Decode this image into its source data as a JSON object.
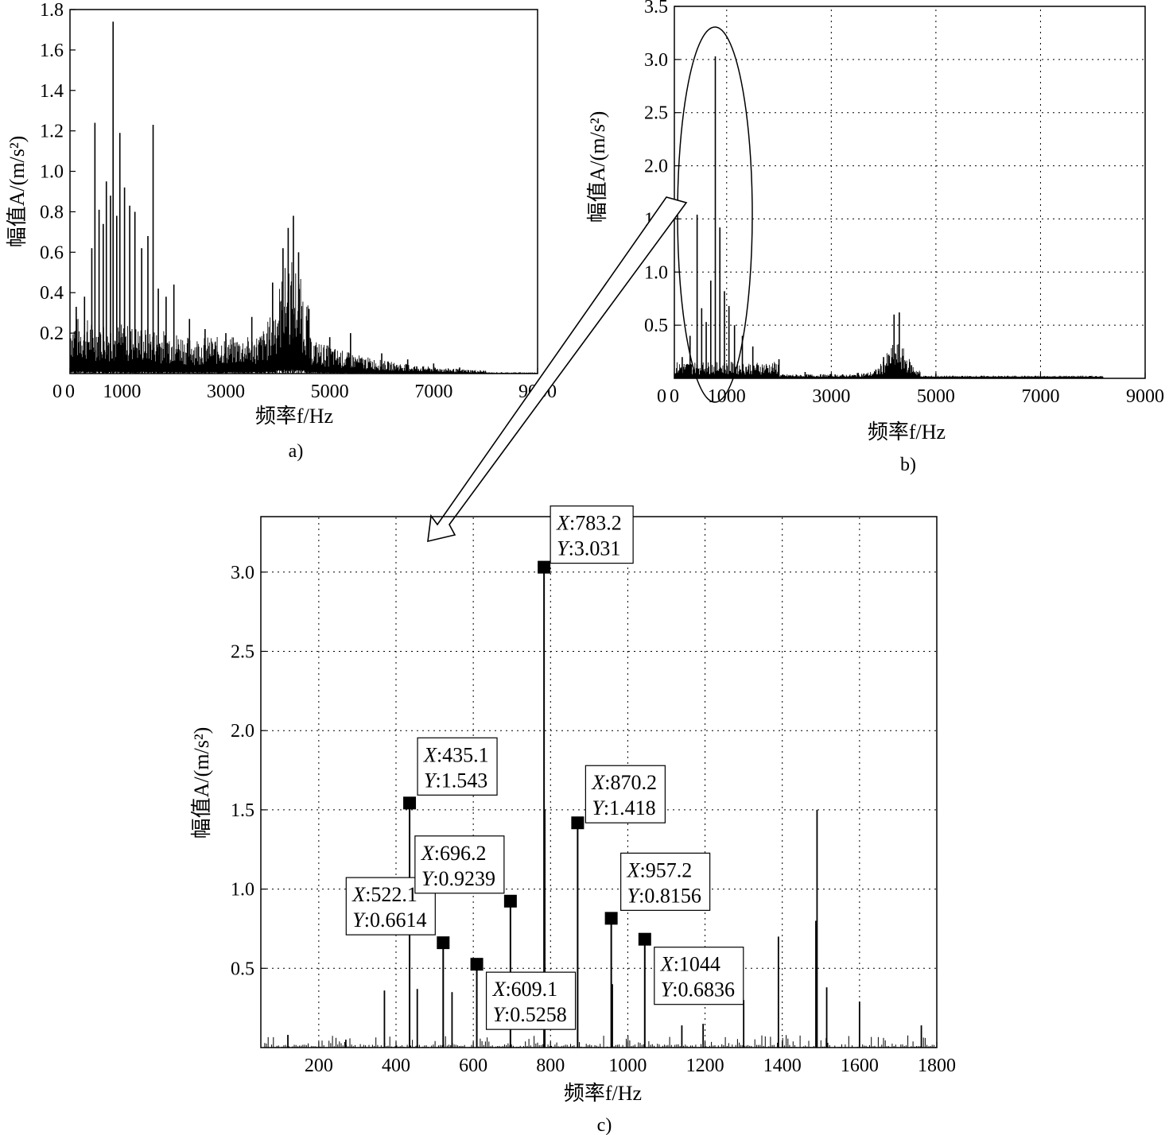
{
  "figure_captions": {
    "a": "a)",
    "b": "b)",
    "c": "c)"
  },
  "chart_data": [
    {
      "id": "a",
      "type": "line",
      "title": "",
      "xlabel": "频率f/Hz",
      "ylabel": "幅值A/(m/s²)",
      "xlim": [
        0,
        9000
      ],
      "ylim": [
        0,
        1.8
      ],
      "xticks": [
        0,
        1000,
        3000,
        5000,
        7000,
        9000
      ],
      "yticks": [
        0.2,
        0.4,
        0.6,
        0.8,
        1.0,
        1.2,
        1.4,
        1.6,
        1.8
      ],
      "ytick_labels": [
        "0.2",
        "0.4",
        "0.6",
        "0.8",
        "1.0",
        "1.2",
        "1.4",
        "1.6",
        "1.8"
      ],
      "grid": false,
      "peaks": [
        {
          "x": 120,
          "y": 0.33
        },
        {
          "x": 280,
          "y": 0.38
        },
        {
          "x": 420,
          "y": 0.62
        },
        {
          "x": 480,
          "y": 1.24
        },
        {
          "x": 560,
          "y": 0.81
        },
        {
          "x": 640,
          "y": 0.74
        },
        {
          "x": 700,
          "y": 0.95
        },
        {
          "x": 780,
          "y": 0.88
        },
        {
          "x": 830,
          "y": 1.74
        },
        {
          "x": 900,
          "y": 0.78
        },
        {
          "x": 960,
          "y": 1.19
        },
        {
          "x": 1050,
          "y": 0.92
        },
        {
          "x": 1150,
          "y": 0.83
        },
        {
          "x": 1250,
          "y": 0.8
        },
        {
          "x": 1380,
          "y": 0.62
        },
        {
          "x": 1500,
          "y": 0.68
        },
        {
          "x": 1600,
          "y": 1.23
        },
        {
          "x": 1700,
          "y": 0.42
        },
        {
          "x": 1850,
          "y": 0.38
        },
        {
          "x": 2000,
          "y": 0.44
        },
        {
          "x": 2300,
          "y": 0.27
        },
        {
          "x": 2600,
          "y": 0.22
        },
        {
          "x": 3000,
          "y": 0.2
        },
        {
          "x": 3500,
          "y": 0.28
        },
        {
          "x": 3900,
          "y": 0.45
        },
        {
          "x": 4100,
          "y": 0.62
        },
        {
          "x": 4200,
          "y": 0.72
        },
        {
          "x": 4300,
          "y": 0.78
        },
        {
          "x": 4400,
          "y": 0.6
        },
        {
          "x": 4600,
          "y": 0.32
        },
        {
          "x": 5000,
          "y": 0.18
        },
        {
          "x": 5400,
          "y": 0.2
        },
        {
          "x": 6000,
          "y": 0.1
        },
        {
          "x": 6500,
          "y": 0.07
        },
        {
          "x": 7000,
          "y": 0.05
        },
        {
          "x": 7500,
          "y": 0.03
        },
        {
          "x": 8000,
          "y": 0.01
        }
      ]
    },
    {
      "id": "b",
      "type": "line",
      "title": "",
      "xlabel": "频率f/Hz",
      "ylabel": "幅值A/(m/s²)",
      "xlim": [
        0,
        9000
      ],
      "ylim": [
        0,
        3.5
      ],
      "xticks": [
        0,
        1000,
        3000,
        5000,
        7000,
        9000
      ],
      "yticks": [
        0.5,
        1.0,
        1.5,
        2.0,
        2.5,
        3.0,
        3.5
      ],
      "ytick_labels": [
        "0.5",
        "1.0",
        "1.5",
        "2.0",
        "2.5",
        "3.0",
        "3.5"
      ],
      "grid": true,
      "annotation": "ellipse highlighting 0–1500 Hz region",
      "peaks": [
        {
          "x": 150,
          "y": 0.2
        },
        {
          "x": 300,
          "y": 0.4
        },
        {
          "x": 435,
          "y": 1.54
        },
        {
          "x": 522,
          "y": 0.66
        },
        {
          "x": 609,
          "y": 0.53
        },
        {
          "x": 696,
          "y": 0.92
        },
        {
          "x": 783,
          "y": 3.03
        },
        {
          "x": 870,
          "y": 1.42
        },
        {
          "x": 957,
          "y": 0.82
        },
        {
          "x": 1044,
          "y": 0.68
        },
        {
          "x": 1150,
          "y": 0.5
        },
        {
          "x": 1300,
          "y": 0.4
        },
        {
          "x": 1500,
          "y": 0.3
        },
        {
          "x": 2000,
          "y": 0.18
        },
        {
          "x": 2500,
          "y": 0.06
        },
        {
          "x": 3000,
          "y": 0.04
        },
        {
          "x": 3500,
          "y": 0.05
        },
        {
          "x": 4000,
          "y": 0.2
        },
        {
          "x": 4200,
          "y": 0.6
        },
        {
          "x": 4300,
          "y": 0.62
        },
        {
          "x": 4500,
          "y": 0.15
        },
        {
          "x": 5000,
          "y": 0.04
        },
        {
          "x": 6000,
          "y": 0.02
        },
        {
          "x": 7000,
          "y": 0.01
        },
        {
          "x": 8000,
          "y": 0.01
        }
      ]
    },
    {
      "id": "c",
      "type": "line",
      "title": "",
      "xlabel": "频率f/Hz",
      "ylabel": "幅值A/(m/s²)",
      "xlim": [
        50,
        1800
      ],
      "ylim": [
        0,
        3.35
      ],
      "xticks": [
        200,
        400,
        600,
        800,
        1000,
        1200,
        1400,
        1600,
        1800
      ],
      "yticks": [
        0.5,
        1.0,
        1.5,
        2.0,
        2.5,
        3.0
      ],
      "ytick_labels": [
        "0.5",
        "1.0",
        "1.5",
        "2.0",
        "2.5",
        "3.0"
      ],
      "grid": true,
      "datatips": [
        {
          "x": 435.1,
          "y": 1.543,
          "label_x": "435.1",
          "label_y": "1.543"
        },
        {
          "x": 522.1,
          "y": 0.6614,
          "label_x": "522.1",
          "label_y": "0.6614"
        },
        {
          "x": 609.1,
          "y": 0.5258,
          "label_x": "609.1",
          "label_y": "0.5258"
        },
        {
          "x": 696.2,
          "y": 0.9239,
          "label_x": "696.2",
          "label_y": "0.9239"
        },
        {
          "x": 783.2,
          "y": 3.031,
          "label_x": "783.2",
          "label_y": "3.031"
        },
        {
          "x": 870.2,
          "y": 1.418,
          "label_x": "870.2",
          "label_y": "1.418"
        },
        {
          "x": 957.2,
          "y": 0.8156,
          "label_x": "957.2",
          "label_y": "0.8156"
        },
        {
          "x": 1044,
          "y": 0.6836,
          "label_x": "1044",
          "label_y": "0.6836"
        }
      ],
      "other_peaks": [
        {
          "x": 120,
          "y": 0.08
        },
        {
          "x": 270,
          "y": 0.05
        },
        {
          "x": 370,
          "y": 0.36
        },
        {
          "x": 455,
          "y": 0.37
        },
        {
          "x": 545,
          "y": 0.35
        },
        {
          "x": 1140,
          "y": 0.14
        },
        {
          "x": 1195,
          "y": 0.15
        },
        {
          "x": 1300,
          "y": 0.3
        },
        {
          "x": 1390,
          "y": 0.7
        },
        {
          "x": 1490,
          "y": 1.5
        },
        {
          "x": 1487,
          "y": 0.8
        },
        {
          "x": 1515,
          "y": 0.38
        },
        {
          "x": 1600,
          "y": 0.29
        },
        {
          "x": 1760,
          "y": 0.14
        }
      ]
    }
  ]
}
